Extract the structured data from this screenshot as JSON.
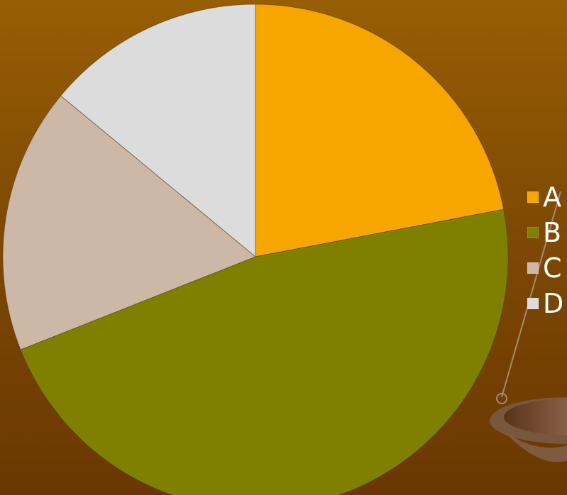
{
  "chart_data": {
    "type": "pie",
    "title": "",
    "categories": [
      "A",
      "B",
      "C",
      "D"
    ],
    "values": [
      22,
      47,
      17,
      14
    ],
    "colors": [
      "#f7a600",
      "#7f7f00",
      "#cdb8a8",
      "#dcdcdc"
    ],
    "start_angle_deg": 0,
    "direction": "clockwise",
    "legend": {
      "position": "right"
    }
  }
}
